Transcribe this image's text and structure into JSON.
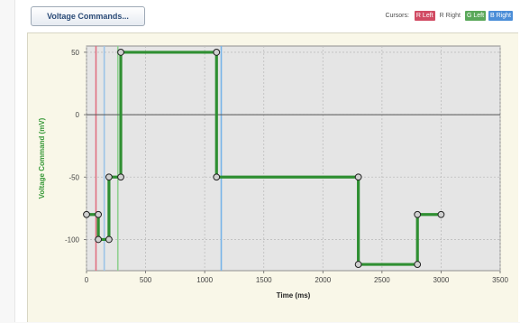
{
  "toolbar": {
    "voltage_commands_label": "Voltage Commands..."
  },
  "cursors": {
    "label": "Cursors:",
    "chips": [
      {
        "text": "R Left",
        "color": "#d14c64"
      },
      {
        "text": "R Right",
        "color": "#ffffff"
      },
      {
        "text": "G Left",
        "color": "#5aa85a"
      },
      {
        "text": "B Right",
        "color": "#4b8ed8"
      }
    ]
  },
  "chart_data": {
    "type": "line",
    "xlabel": "Time (ms)",
    "ylabel": "Voltage Command (mV)",
    "xlim": [
      0,
      3500
    ],
    "ylim": [
      -125,
      55
    ],
    "x_ticks": [
      0,
      500,
      1000,
      1500,
      2000,
      2500,
      3000,
      3500
    ],
    "y_ticks": [
      50,
      0,
      -50,
      -100
    ],
    "grid": true,
    "series": [
      {
        "color": "#2f8f32",
        "points": [
          [
            0,
            -80
          ],
          [
            100,
            -80
          ],
          [
            100,
            -100
          ],
          [
            190,
            -100
          ],
          [
            190,
            -50
          ],
          [
            290,
            -50
          ],
          [
            290,
            50
          ],
          [
            1100,
            50
          ],
          [
            1100,
            -50
          ],
          [
            2300,
            -50
          ],
          [
            2300,
            -120
          ],
          [
            2800,
            -120
          ],
          [
            2800,
            -80
          ],
          [
            3000,
            -80
          ]
        ],
        "markers": [
          [
            0,
            -80
          ],
          [
            100,
            -80
          ],
          [
            100,
            -100
          ],
          [
            190,
            -100
          ],
          [
            190,
            -50
          ],
          [
            290,
            -50
          ],
          [
            290,
            50
          ],
          [
            1100,
            50
          ],
          [
            1100,
            -50
          ],
          [
            2300,
            -50
          ],
          [
            2300,
            -120
          ],
          [
            2800,
            -120
          ],
          [
            2800,
            -80
          ],
          [
            3000,
            -80
          ]
        ]
      }
    ],
    "cursor_lines": [
      {
        "name": "R Left",
        "x": 80,
        "color": "#e07080"
      },
      {
        "name": "B Left",
        "x": 150,
        "color": "#9cc4e8"
      },
      {
        "name": "G Left",
        "x": 265,
        "color": "#8fd08f"
      },
      {
        "name": "B Right",
        "x": 1140,
        "color": "#78b4e8"
      }
    ],
    "colors": {
      "plot_background": "#e5e5e5",
      "panel_background": "#f9f7e8",
      "tick_label": "#444444",
      "ylabel": "#3a9a3a",
      "xlabel": "#222222",
      "zero_line": "#555555"
    }
  }
}
